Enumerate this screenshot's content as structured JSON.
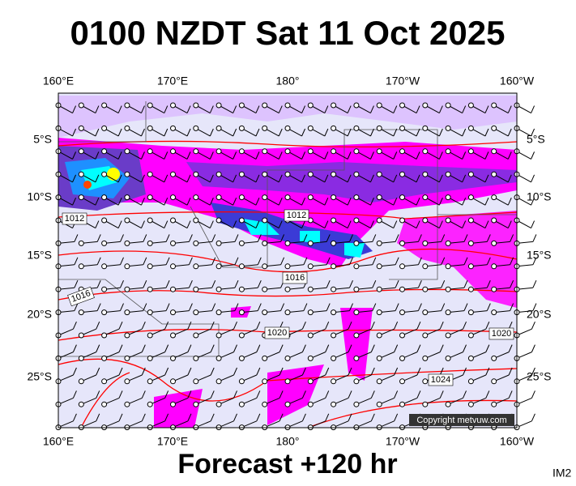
{
  "header": {
    "title": "0100 NZDT Sat 11 Oct 2025"
  },
  "map": {
    "lon_labels": [
      "160°E",
      "170°E",
      "180°",
      "170°W",
      "160°W"
    ],
    "lat_labels": [
      "5°S",
      "10°S",
      "15°S",
      "20°S",
      "25°S"
    ],
    "isobar_labels": [
      "1012",
      "1012",
      "1016",
      "1016",
      "1020",
      "1020",
      "1024"
    ],
    "copyright": "Copyright metvuw.com"
  },
  "footer": {
    "forecast": "Forecast +120 hr",
    "code": "IM2"
  }
}
